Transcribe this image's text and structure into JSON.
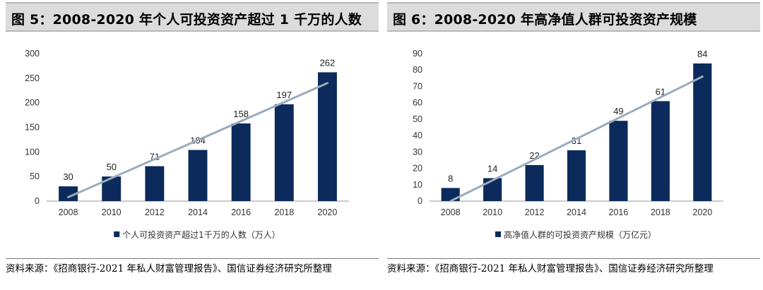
{
  "colors": {
    "bar": "#0c2a5b",
    "trend": "#9aabbc",
    "axis": "#9a9a9a"
  },
  "charts": [
    {
      "title": "图 5：2008-2020 年个人可投资资产超过 1 千万的人数",
      "source": "资料来源：《招商银行-2021 年私人财富管理报告》、国信证券经济研究所整理",
      "legend": "个人可投资资产超过1千万的人数（万人）",
      "chart_data": {
        "type": "bar",
        "categories": [
          "2008",
          "2010",
          "2012",
          "2014",
          "2016",
          "2018",
          "2020"
        ],
        "values": [
          30,
          50,
          71,
          104,
          158,
          197,
          262
        ],
        "data_labels": [
          "30",
          "50",
          "71",
          "104",
          "158",
          "197",
          "262"
        ],
        "ylim": [
          0,
          300
        ],
        "yticks": [
          0,
          50,
          100,
          150,
          200,
          250,
          300
        ],
        "ytick_labels": [
          "0",
          "50",
          "100",
          "150",
          "200",
          "250",
          "300"
        ],
        "trend_line": {
          "from": [
            0,
            8
          ],
          "to": [
            6,
            240
          ]
        },
        "legend_position": "bottom"
      }
    },
    {
      "title": "图 6：2008-2020 年高净值人群可投资资产规模",
      "source": "资料来源：《招商银行-2021 年私人财富管理报告》、国信证券经济研究所整理",
      "legend": "高净值人群的可投资资产规模（万亿元）",
      "chart_data": {
        "type": "bar",
        "categories": [
          "2008",
          "2010",
          "2012",
          "2014",
          "2016",
          "2018",
          "2020"
        ],
        "values": [
          8,
          14,
          22,
          31,
          49,
          61,
          84
        ],
        "data_labels": [
          "8",
          "14",
          "22",
          "31",
          "49",
          "61",
          "84"
        ],
        "ylim": [
          0,
          90
        ],
        "yticks": [
          0,
          10,
          20,
          30,
          40,
          50,
          60,
          70,
          80,
          90
        ],
        "ytick_labels": [
          "0",
          "10",
          "20",
          "30",
          "40",
          "50",
          "60",
          "70",
          "80",
          "90"
        ],
        "trend_line": {
          "from": [
            0,
            0
          ],
          "to": [
            6,
            76
          ]
        },
        "legend_position": "bottom"
      }
    }
  ]
}
